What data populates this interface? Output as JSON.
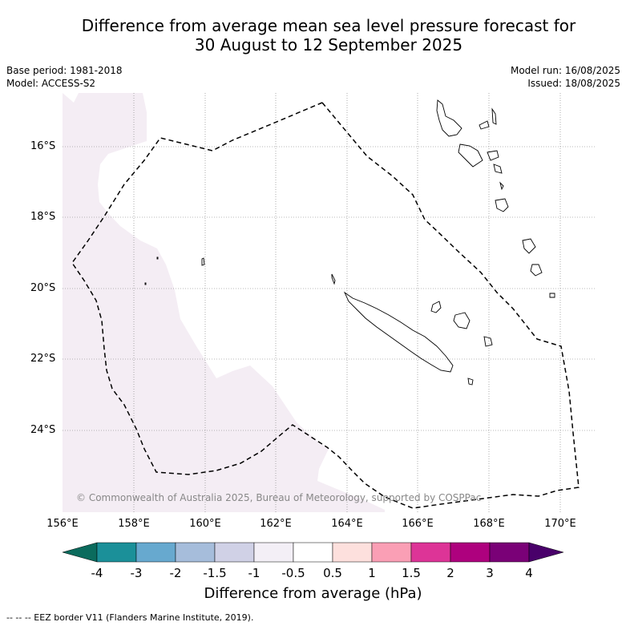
{
  "title": {
    "line1": "Difference from average mean sea level pressure forecast for",
    "line2": "30 August to 12 September 2025"
  },
  "meta": {
    "base_period": "Base period: 1981-2018",
    "model": "Model: ACCESS-S2",
    "model_run": "Model run: 16/08/2025",
    "issued": "Issued: 18/08/2025"
  },
  "map": {
    "latitude_labels": [
      "16°S",
      "18°S",
      "20°S",
      "22°S",
      "24°S"
    ],
    "longitude_labels": [
      "156°E",
      "158°E",
      "160°E",
      "162°E",
      "164°E",
      "166°E",
      "168°E",
      "170°E"
    ],
    "copyright": "© Commonwealth of Australia 2025, Bureau of Meteorology, supported by COSPPac",
    "shading_color": "#f4edf4",
    "eez_color": "#000000"
  },
  "colorbar": {
    "ticks": [
      "-4",
      "-3",
      "-2",
      "-1.5",
      "-1",
      "-0.5",
      "0.5",
      "1",
      "1.5",
      "2",
      "3",
      "4"
    ],
    "colors": [
      "#0b6b5d",
      "#1b9099",
      "#67a9cf",
      "#a6bddb",
      "#d0d1e6",
      "#f3eff6",
      "#ffffff",
      "#fde0dd",
      "#fa9fb5",
      "#dd3497",
      "#ae017e",
      "#7a0177",
      "#49006a"
    ],
    "label": "Difference from average (hPa)"
  },
  "footer": "--  --  -- EEZ border V11 (Flanders Marine Institute, 2019)."
}
